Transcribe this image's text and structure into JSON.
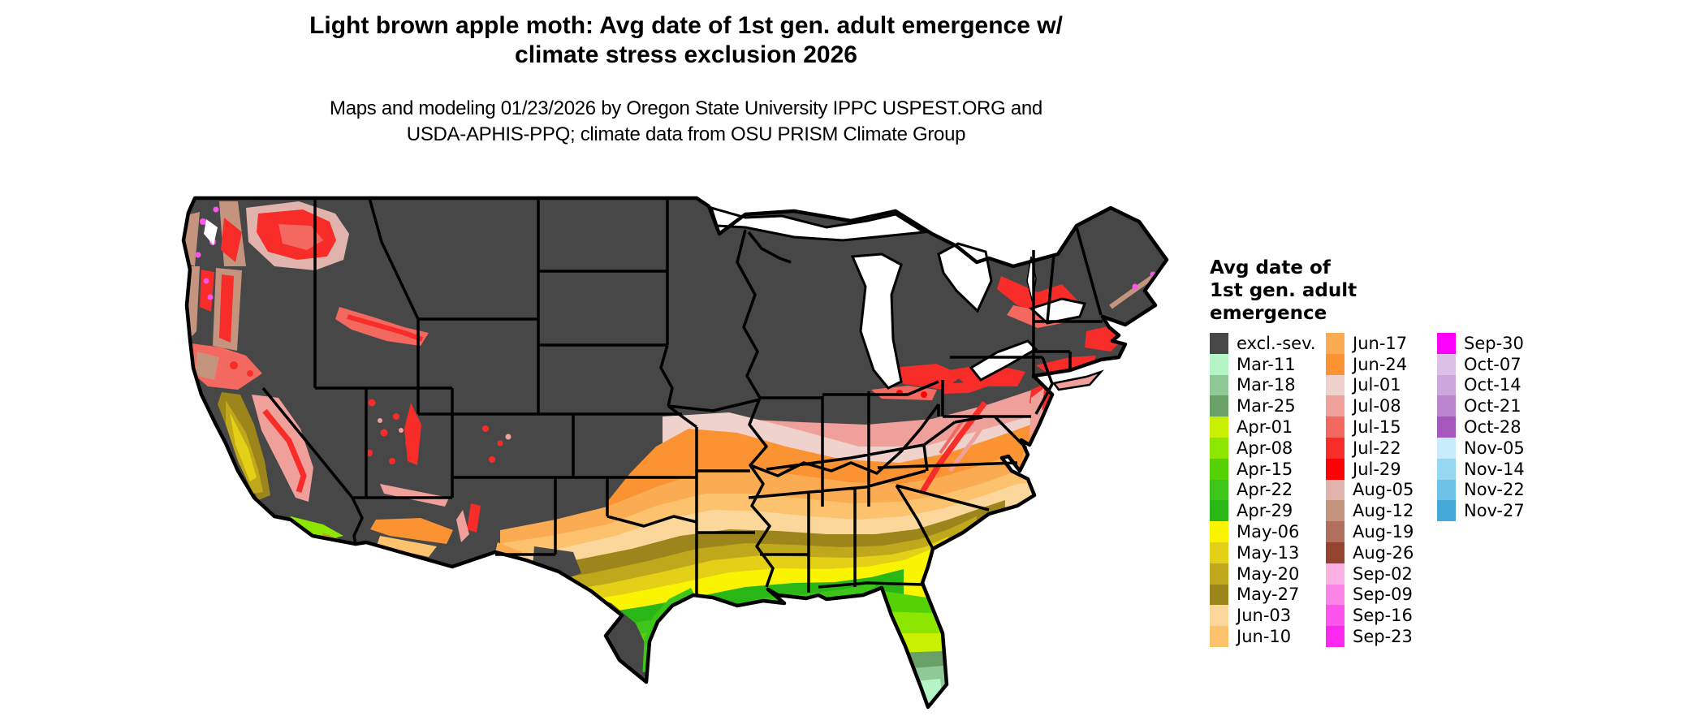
{
  "title": {
    "line1": "Light brown apple moth: Avg date of 1st gen. adult emergence w/",
    "line2": "climate stress exclusion 2026"
  },
  "subtitle": {
    "line1": "Maps and modeling 01/23/2026 by Oregon State University IPPC USPEST.ORG and",
    "line2": "USDA-APHIS-PPQ; climate data from OSU PRISM Climate Group"
  },
  "map": {
    "type": "choropleth",
    "region": "contiguous United States",
    "variable": "Average date of first generation adult emergence (light brown apple moth)",
    "excluded_color": "#474747",
    "water_color": "#ffffff",
    "border_color": "#000000"
  },
  "legend": {
    "title_lines": [
      "Avg date of",
      "1st gen. adult",
      "emergence"
    ],
    "columns": [
      {
        "entries": [
          {
            "label": "excl.-sev.",
            "color": "#474747"
          },
          {
            "label": "Mar-11",
            "color": "#b5f5c5"
          },
          {
            "label": "Mar-18",
            "color": "#8fc997"
          },
          {
            "label": "Mar-25",
            "color": "#68a068"
          },
          {
            "label": "Apr-01",
            "color": "#c8f000"
          },
          {
            "label": "Apr-08",
            "color": "#8ce600"
          },
          {
            "label": "Apr-15",
            "color": "#55d206"
          },
          {
            "label": "Apr-22",
            "color": "#3dc51a"
          },
          {
            "label": "Apr-29",
            "color": "#28b714"
          },
          {
            "label": "May-06",
            "color": "#fbf400"
          },
          {
            "label": "May-13",
            "color": "#e3d017"
          },
          {
            "label": "May-20",
            "color": "#c0a81c"
          },
          {
            "label": "May-27",
            "color": "#9c851a"
          },
          {
            "label": "Jun-03",
            "color": "#fcd79c"
          },
          {
            "label": "Jun-10",
            "color": "#fcc26e"
          }
        ]
      },
      {
        "entries": [
          {
            "label": "Jun-17",
            "color": "#fbab51"
          },
          {
            "label": "Jun-24",
            "color": "#fb9332"
          },
          {
            "label": "Jul-01",
            "color": "#f0d2cc"
          },
          {
            "label": "Jul-08",
            "color": "#f0a09b"
          },
          {
            "label": "Jul-15",
            "color": "#f4695f"
          },
          {
            "label": "Jul-22",
            "color": "#f82c28"
          },
          {
            "label": "Jul-29",
            "color": "#fb0304"
          },
          {
            "label": "Aug-05",
            "color": "#e0b4ac"
          },
          {
            "label": "Aug-12",
            "color": "#c4947f"
          },
          {
            "label": "Aug-19",
            "color": "#b1705d"
          },
          {
            "label": "Aug-26",
            "color": "#94432e"
          },
          {
            "label": "Sep-02",
            "color": "#fcb1e4"
          },
          {
            "label": "Sep-09",
            "color": "#fc83e8"
          },
          {
            "label": "Sep-16",
            "color": "#fc54ec"
          },
          {
            "label": "Sep-23",
            "color": "#fc28f0"
          }
        ]
      },
      {
        "entries": [
          {
            "label": "Sep-30",
            "color": "#fb01f9"
          },
          {
            "label": "Oct-07",
            "color": "#dcc1e6"
          },
          {
            "label": "Oct-14",
            "color": "#cda6dc"
          },
          {
            "label": "Oct-21",
            "color": "#bc86cf"
          },
          {
            "label": "Oct-28",
            "color": "#a657bc"
          },
          {
            "label": "Nov-05",
            "color": "#c8ecfb"
          },
          {
            "label": "Nov-14",
            "color": "#96d7f2"
          },
          {
            "label": "Nov-22",
            "color": "#6ec2e8"
          },
          {
            "label": "Nov-27",
            "color": "#45a9d9"
          }
        ]
      }
    ]
  }
}
